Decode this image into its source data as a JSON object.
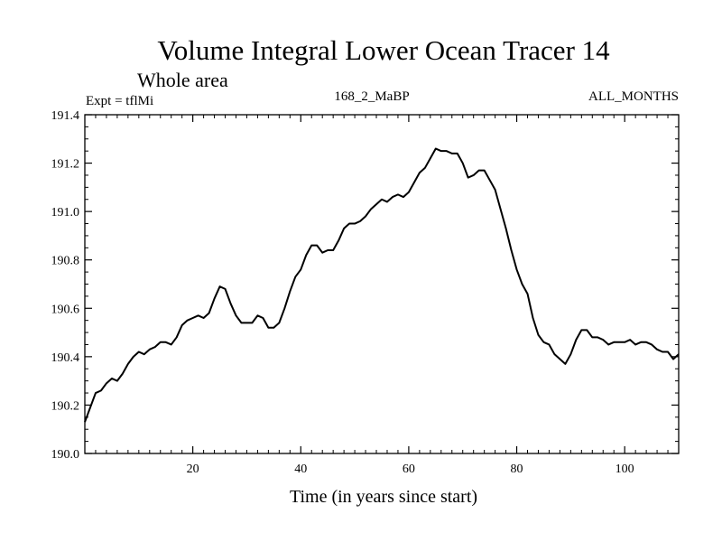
{
  "chart_data": {
    "type": "line",
    "title": "Volume Integral Lower Ocean Tracer 14",
    "subtitle": "Whole area",
    "expt_label": "Expt = tflMi",
    "center_label": "168_2_MaBP",
    "right_label": "ALL_MONTHS",
    "xlabel": "Time (in years since start)",
    "ylabel": "",
    "xlim": [
      0,
      110
    ],
    "ylim": [
      190.0,
      191.4
    ],
    "xticks": [
      20,
      40,
      60,
      80,
      100
    ],
    "yticks": [
      190.0,
      190.2,
      190.4,
      190.6,
      190.8,
      191.0,
      191.2,
      191.4
    ],
    "ytick_labels": [
      "190.0",
      "190.2",
      "190.4",
      "190.6",
      "190.8",
      "191.0",
      "191.2",
      "191.4"
    ],
    "series": [
      {
        "name": "tracer14",
        "x": [
          0,
          1,
          2,
          3,
          4,
          5,
          6,
          7,
          8,
          9,
          10,
          11,
          12,
          13,
          14,
          15,
          16,
          17,
          18,
          19,
          20,
          21,
          22,
          23,
          24,
          25,
          26,
          27,
          28,
          29,
          30,
          31,
          32,
          33,
          34,
          35,
          36,
          37,
          38,
          39,
          40,
          41,
          42,
          43,
          44,
          45,
          46,
          47,
          48,
          49,
          50,
          51,
          52,
          53,
          54,
          55,
          56,
          57,
          58,
          59,
          60,
          61,
          62,
          63,
          64,
          65,
          66,
          67,
          68,
          69,
          70,
          71,
          72,
          73,
          74,
          75,
          76,
          77,
          78,
          79,
          80,
          81,
          82,
          83,
          84,
          85,
          86,
          87,
          88,
          89,
          90,
          91,
          92,
          93,
          94,
          95,
          96,
          97,
          98,
          99,
          100,
          101,
          102,
          103,
          104,
          105,
          106,
          107,
          108,
          109,
          110
        ],
        "y": [
          190.13,
          190.19,
          190.25,
          190.26,
          190.29,
          190.31,
          190.3,
          190.33,
          190.37,
          190.4,
          190.42,
          190.41,
          190.43,
          190.44,
          190.46,
          190.46,
          190.45,
          190.48,
          190.53,
          190.55,
          190.56,
          190.57,
          190.56,
          190.58,
          190.64,
          190.69,
          190.68,
          190.62,
          190.57,
          190.54,
          190.54,
          190.54,
          190.57,
          190.56,
          190.52,
          190.52,
          190.54,
          190.6,
          190.67,
          190.73,
          190.76,
          190.82,
          190.86,
          190.86,
          190.83,
          190.84,
          190.84,
          190.88,
          190.93,
          190.95,
          190.95,
          190.96,
          190.98,
          191.01,
          191.03,
          191.05,
          191.04,
          191.06,
          191.07,
          191.06,
          191.08,
          191.12,
          191.16,
          191.18,
          191.22,
          191.26,
          191.25,
          191.25,
          191.24,
          191.24,
          191.2,
          191.14,
          191.15,
          191.17,
          191.17,
          191.13,
          191.09,
          191.01,
          190.93,
          190.84,
          190.76,
          190.7,
          190.66,
          190.56,
          190.49,
          190.46,
          190.45,
          190.41,
          190.39,
          190.37,
          190.41,
          190.47,
          190.51,
          190.51,
          190.48,
          190.48,
          190.47,
          190.45,
          190.46,
          190.46,
          190.46,
          190.47,
          190.45,
          190.46,
          190.46,
          190.45,
          190.43,
          190.42,
          190.42,
          190.39,
          190.41
        ]
      }
    ]
  }
}
